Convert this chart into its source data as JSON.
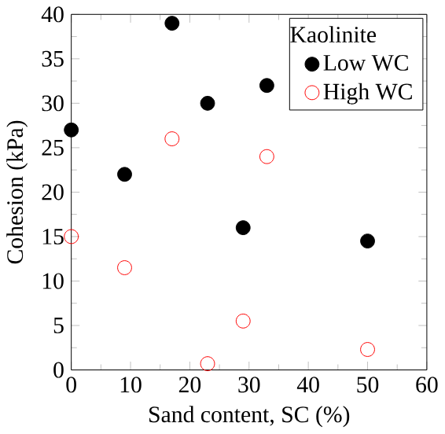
{
  "chart_data": {
    "type": "scatter",
    "xlabel": "Sand content, SC (%)",
    "ylabel": "Cohesion (kPa)",
    "legend_title": "Kaolinite",
    "xlim": [
      0,
      60
    ],
    "ylim": [
      0,
      40
    ],
    "xticks": [
      0,
      10,
      20,
      30,
      40,
      50,
      60
    ],
    "yticks": [
      0,
      5,
      10,
      15,
      20,
      25,
      30,
      35,
      40
    ],
    "legend": "top right",
    "marker": "circle",
    "grid": false,
    "series": [
      {
        "name": "Low WC",
        "color": "#000000",
        "x": [
          0,
          9,
          17,
          23,
          29,
          33,
          50
        ],
        "values": [
          27,
          22,
          39,
          30,
          16,
          32,
          14.5
        ]
      },
      {
        "name": "High WC",
        "color": "#ff0000",
        "x": [
          0,
          9,
          17,
          23,
          29,
          33,
          50
        ],
        "values": [
          15,
          11.5,
          26,
          0.7,
          5.5,
          24,
          2.3
        ]
      }
    ]
  }
}
